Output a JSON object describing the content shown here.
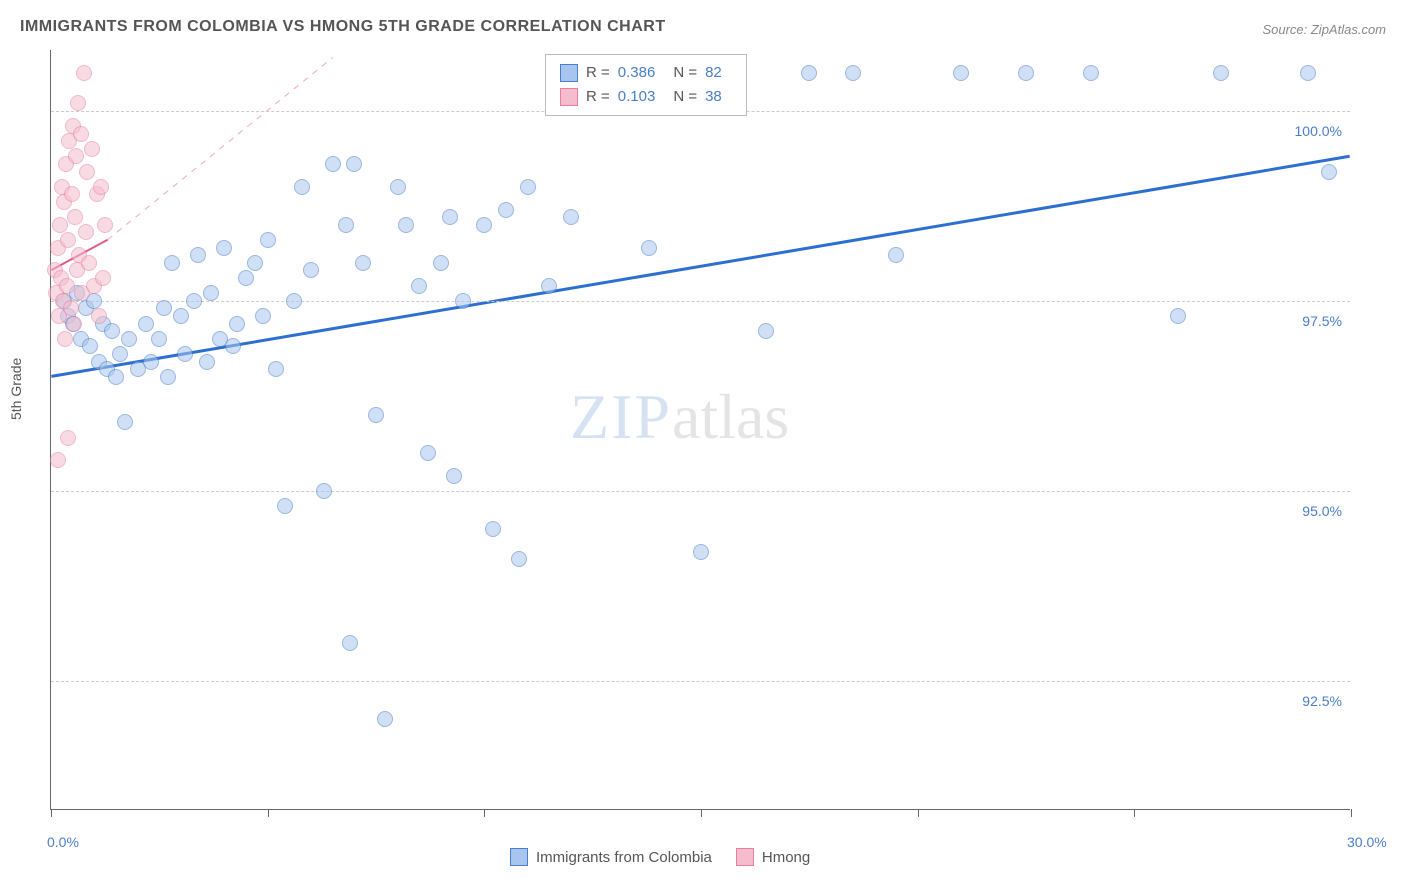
{
  "title": "IMMIGRANTS FROM COLOMBIA VS HMONG 5TH GRADE CORRELATION CHART",
  "source": "Source: ZipAtlas.com",
  "y_axis_label": "5th Grade",
  "watermark": {
    "zip": "ZIP",
    "atlas": "atlas"
  },
  "chart": {
    "type": "scatter",
    "xlim": [
      0,
      30
    ],
    "ylim": [
      90.8,
      100.8
    ],
    "x_ticks": [
      0,
      5,
      10,
      15,
      20,
      25,
      30
    ],
    "x_tick_labels": {
      "0": "0.0%",
      "30": "30.0%"
    },
    "y_gridlines": [
      92.5,
      95.0,
      97.5,
      100.0
    ],
    "y_tick_labels": {
      "92.5": "92.5%",
      "95.0": "95.0%",
      "97.5": "97.5%",
      "100.0": "100.0%"
    },
    "background_color": "#ffffff",
    "grid_color": "#cccccc",
    "axis_color": "#666666",
    "tick_label_color": "#4a7ec9",
    "marker_radius": 8,
    "marker_opacity": 0.55
  },
  "series": [
    {
      "name": "Immigrants from Colombia",
      "fill_color": "#a8c6ed",
      "stroke_color": "#4a7ec9",
      "R": "0.386",
      "N": "82",
      "trend": {
        "x1": 0,
        "y1": 96.5,
        "x2": 30,
        "y2": 99.4,
        "color": "#2d6fd1",
        "width": 3
      },
      "points": [
        [
          0.3,
          97.5
        ],
        [
          0.4,
          97.3
        ],
        [
          0.5,
          97.2
        ],
        [
          0.6,
          97.6
        ],
        [
          0.7,
          97.0
        ],
        [
          0.8,
          97.4
        ],
        [
          0.9,
          96.9
        ],
        [
          1.0,
          97.5
        ],
        [
          1.1,
          96.7
        ],
        [
          1.2,
          97.2
        ],
        [
          1.3,
          96.6
        ],
        [
          1.4,
          97.1
        ],
        [
          1.5,
          96.5
        ],
        [
          1.6,
          96.8
        ],
        [
          1.8,
          97.0
        ],
        [
          1.7,
          95.9
        ],
        [
          2.0,
          96.6
        ],
        [
          2.2,
          97.2
        ],
        [
          2.3,
          96.7
        ],
        [
          2.5,
          97.0
        ],
        [
          2.6,
          97.4
        ],
        [
          2.7,
          96.5
        ],
        [
          2.8,
          98.0
        ],
        [
          3.0,
          97.3
        ],
        [
          3.1,
          96.8
        ],
        [
          3.3,
          97.5
        ],
        [
          3.4,
          98.1
        ],
        [
          3.6,
          96.7
        ],
        [
          3.7,
          97.6
        ],
        [
          3.9,
          97.0
        ],
        [
          4.0,
          98.2
        ],
        [
          4.2,
          96.9
        ],
        [
          4.3,
          97.2
        ],
        [
          4.5,
          97.8
        ],
        [
          4.7,
          98.0
        ],
        [
          4.9,
          97.3
        ],
        [
          5.0,
          98.3
        ],
        [
          5.2,
          96.6
        ],
        [
          5.4,
          94.8
        ],
        [
          5.6,
          97.5
        ],
        [
          5.8,
          99.0
        ],
        [
          6.0,
          97.9
        ],
        [
          6.3,
          95.0
        ],
        [
          6.5,
          99.3
        ],
        [
          6.8,
          98.5
        ],
        [
          6.9,
          93.0
        ],
        [
          7.0,
          99.3
        ],
        [
          7.2,
          98.0
        ],
        [
          7.5,
          96.0
        ],
        [
          7.7,
          92.0
        ],
        [
          8.0,
          99.0
        ],
        [
          8.2,
          98.5
        ],
        [
          8.5,
          97.7
        ],
        [
          8.7,
          95.5
        ],
        [
          9.0,
          98.0
        ],
        [
          9.2,
          98.6
        ],
        [
          9.3,
          95.2
        ],
        [
          9.5,
          97.5
        ],
        [
          10.0,
          98.5
        ],
        [
          10.2,
          94.5
        ],
        [
          10.5,
          98.7
        ],
        [
          10.8,
          94.1
        ],
        [
          11.0,
          99.0
        ],
        [
          11.5,
          97.7
        ],
        [
          11.7,
          100.5
        ],
        [
          12.0,
          98.6
        ],
        [
          13.0,
          100.5
        ],
        [
          13.8,
          98.2
        ],
        [
          14.5,
          100.5
        ],
        [
          15.0,
          94.2
        ],
        [
          15.5,
          100.5
        ],
        [
          16.5,
          97.1
        ],
        [
          17.5,
          100.5
        ],
        [
          18.5,
          100.5
        ],
        [
          19.5,
          98.1
        ],
        [
          21.0,
          100.5
        ],
        [
          22.5,
          100.5
        ],
        [
          24.0,
          100.5
        ],
        [
          26.0,
          97.3
        ],
        [
          27.0,
          100.5
        ],
        [
          29.0,
          100.5
        ],
        [
          29.5,
          99.2
        ]
      ]
    },
    {
      "name": "Hmong",
      "fill_color": "#f4bccd",
      "stroke_color": "#e87fa3",
      "R": "0.103",
      "N": "38",
      "trend_solid": {
        "x1": 0,
        "y1": 97.9,
        "x2": 1.3,
        "y2": 98.3,
        "color": "#e15b8a",
        "width": 2
      },
      "trend_dashed": {
        "x1": 1.3,
        "y1": 98.3,
        "x2": 6.5,
        "y2": 100.7,
        "color": "#f2a8c0",
        "width": 1
      },
      "points": [
        [
          0.1,
          97.9
        ],
        [
          0.12,
          97.6
        ],
        [
          0.15,
          98.2
        ],
        [
          0.18,
          97.3
        ],
        [
          0.2,
          98.5
        ],
        [
          0.22,
          97.8
        ],
        [
          0.25,
          99.0
        ],
        [
          0.28,
          97.5
        ],
        [
          0.3,
          98.8
        ],
        [
          0.32,
          97.0
        ],
        [
          0.35,
          99.3
        ],
        [
          0.38,
          97.7
        ],
        [
          0.4,
          98.3
        ],
        [
          0.42,
          99.6
        ],
        [
          0.45,
          97.4
        ],
        [
          0.48,
          98.9
        ],
        [
          0.5,
          99.8
        ],
        [
          0.52,
          97.2
        ],
        [
          0.55,
          98.6
        ],
        [
          0.58,
          99.4
        ],
        [
          0.6,
          97.9
        ],
        [
          0.62,
          100.1
        ],
        [
          0.65,
          98.1
        ],
        [
          0.7,
          99.7
        ],
        [
          0.72,
          97.6
        ],
        [
          0.75,
          100.5
        ],
        [
          0.8,
          98.4
        ],
        [
          0.83,
          99.2
        ],
        [
          0.88,
          98.0
        ],
        [
          0.95,
          99.5
        ],
        [
          1.0,
          97.7
        ],
        [
          1.05,
          98.9
        ],
        [
          1.1,
          97.3
        ],
        [
          1.15,
          99.0
        ],
        [
          1.2,
          97.8
        ],
        [
          1.25,
          98.5
        ],
        [
          0.15,
          95.4
        ],
        [
          0.4,
          95.7
        ]
      ]
    }
  ],
  "legend_bottom": [
    {
      "label": "Immigrants from Colombia",
      "fill": "#a8c6ed",
      "stroke": "#4a7ec9"
    },
    {
      "label": "Hmong",
      "fill": "#f4bccd",
      "stroke": "#e87fa3"
    }
  ],
  "legend_top_rows": [
    {
      "swatch_fill": "#a8c6ed",
      "swatch_stroke": "#4a7ec9",
      "R_lbl": "R =",
      "R_val": "0.386",
      "N_lbl": "N =",
      "N_val": "82"
    },
    {
      "swatch_fill": "#f4bccd",
      "swatch_stroke": "#e87fa3",
      "R_lbl": "R =",
      "R_val": "0.103",
      "N_lbl": "N =",
      "N_val": "38"
    }
  ]
}
